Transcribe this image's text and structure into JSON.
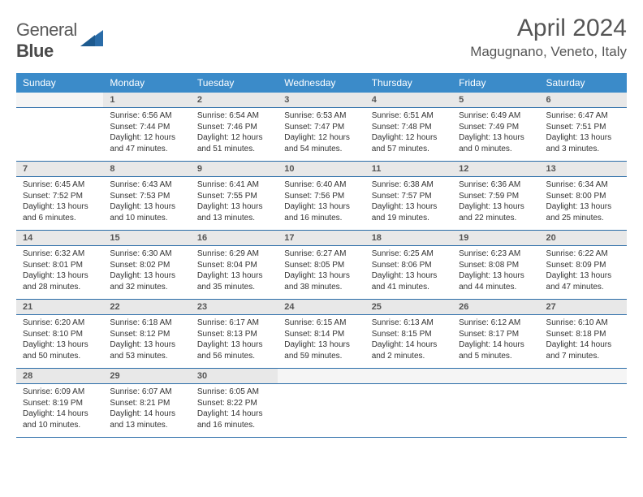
{
  "logo": {
    "word1": "General",
    "word2": "Blue",
    "shape_color": "#2a6ca8"
  },
  "title": "April 2024",
  "location": "Magugnano, Veneto, Italy",
  "colors": {
    "header_bg": "#3b8bc9",
    "daynum_bg": "#e8e8e8",
    "rule": "#2a6ca8"
  },
  "weekdays": [
    "Sunday",
    "Monday",
    "Tuesday",
    "Wednesday",
    "Thursday",
    "Friday",
    "Saturday"
  ],
  "weeks": [
    [
      null,
      {
        "n": "1",
        "sr": "6:56 AM",
        "ss": "7:44 PM",
        "dl": "12 hours and 47 minutes."
      },
      {
        "n": "2",
        "sr": "6:54 AM",
        "ss": "7:46 PM",
        "dl": "12 hours and 51 minutes."
      },
      {
        "n": "3",
        "sr": "6:53 AM",
        "ss": "7:47 PM",
        "dl": "12 hours and 54 minutes."
      },
      {
        "n": "4",
        "sr": "6:51 AM",
        "ss": "7:48 PM",
        "dl": "12 hours and 57 minutes."
      },
      {
        "n": "5",
        "sr": "6:49 AM",
        "ss": "7:49 PM",
        "dl": "13 hours and 0 minutes."
      },
      {
        "n": "6",
        "sr": "6:47 AM",
        "ss": "7:51 PM",
        "dl": "13 hours and 3 minutes."
      }
    ],
    [
      {
        "n": "7",
        "sr": "6:45 AM",
        "ss": "7:52 PM",
        "dl": "13 hours and 6 minutes."
      },
      {
        "n": "8",
        "sr": "6:43 AM",
        "ss": "7:53 PM",
        "dl": "13 hours and 10 minutes."
      },
      {
        "n": "9",
        "sr": "6:41 AM",
        "ss": "7:55 PM",
        "dl": "13 hours and 13 minutes."
      },
      {
        "n": "10",
        "sr": "6:40 AM",
        "ss": "7:56 PM",
        "dl": "13 hours and 16 minutes."
      },
      {
        "n": "11",
        "sr": "6:38 AM",
        "ss": "7:57 PM",
        "dl": "13 hours and 19 minutes."
      },
      {
        "n": "12",
        "sr": "6:36 AM",
        "ss": "7:59 PM",
        "dl": "13 hours and 22 minutes."
      },
      {
        "n": "13",
        "sr": "6:34 AM",
        "ss": "8:00 PM",
        "dl": "13 hours and 25 minutes."
      }
    ],
    [
      {
        "n": "14",
        "sr": "6:32 AM",
        "ss": "8:01 PM",
        "dl": "13 hours and 28 minutes."
      },
      {
        "n": "15",
        "sr": "6:30 AM",
        "ss": "8:02 PM",
        "dl": "13 hours and 32 minutes."
      },
      {
        "n": "16",
        "sr": "6:29 AM",
        "ss": "8:04 PM",
        "dl": "13 hours and 35 minutes."
      },
      {
        "n": "17",
        "sr": "6:27 AM",
        "ss": "8:05 PM",
        "dl": "13 hours and 38 minutes."
      },
      {
        "n": "18",
        "sr": "6:25 AM",
        "ss": "8:06 PM",
        "dl": "13 hours and 41 minutes."
      },
      {
        "n": "19",
        "sr": "6:23 AM",
        "ss": "8:08 PM",
        "dl": "13 hours and 44 minutes."
      },
      {
        "n": "20",
        "sr": "6:22 AM",
        "ss": "8:09 PM",
        "dl": "13 hours and 47 minutes."
      }
    ],
    [
      {
        "n": "21",
        "sr": "6:20 AM",
        "ss": "8:10 PM",
        "dl": "13 hours and 50 minutes."
      },
      {
        "n": "22",
        "sr": "6:18 AM",
        "ss": "8:12 PM",
        "dl": "13 hours and 53 minutes."
      },
      {
        "n": "23",
        "sr": "6:17 AM",
        "ss": "8:13 PM",
        "dl": "13 hours and 56 minutes."
      },
      {
        "n": "24",
        "sr": "6:15 AM",
        "ss": "8:14 PM",
        "dl": "13 hours and 59 minutes."
      },
      {
        "n": "25",
        "sr": "6:13 AM",
        "ss": "8:15 PM",
        "dl": "14 hours and 2 minutes."
      },
      {
        "n": "26",
        "sr": "6:12 AM",
        "ss": "8:17 PM",
        "dl": "14 hours and 5 minutes."
      },
      {
        "n": "27",
        "sr": "6:10 AM",
        "ss": "8:18 PM",
        "dl": "14 hours and 7 minutes."
      }
    ],
    [
      {
        "n": "28",
        "sr": "6:09 AM",
        "ss": "8:19 PM",
        "dl": "14 hours and 10 minutes."
      },
      {
        "n": "29",
        "sr": "6:07 AM",
        "ss": "8:21 PM",
        "dl": "14 hours and 13 minutes."
      },
      {
        "n": "30",
        "sr": "6:05 AM",
        "ss": "8:22 PM",
        "dl": "14 hours and 16 minutes."
      },
      null,
      null,
      null,
      null
    ]
  ],
  "labels": {
    "sunrise": "Sunrise:",
    "sunset": "Sunset:",
    "daylight": "Daylight:"
  }
}
